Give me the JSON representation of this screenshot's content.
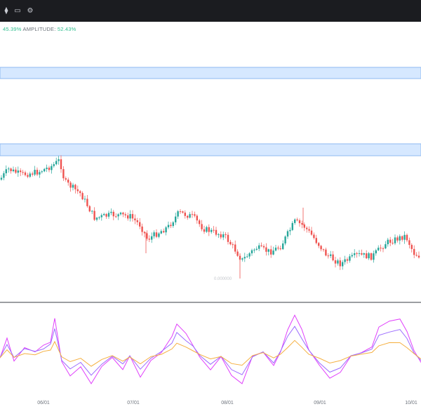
{
  "toolbar": {
    "icons": [
      "chart-type-icon",
      "save-icon",
      "settings-gear-icon"
    ]
  },
  "stats": {
    "first_value": "45.39%",
    "amplitude_label": "AMPLITUDE:",
    "amplitude_value": "52.43%"
  },
  "colors": {
    "up": "#26a69a",
    "down": "#ef5350",
    "zone_fill": "#d6e8ff",
    "zone_stroke": "#8fbaf0",
    "osc_magenta": "#e040fb",
    "osc_violet": "#9c6cff",
    "osc_orange": "#f5b041"
  },
  "x_axis": {
    "ticks": [
      "06/01",
      "07/01",
      "08/01",
      "09/01",
      "10/01"
    ]
  },
  "annotations": {
    "low_marker": "0.000000"
  }
}
